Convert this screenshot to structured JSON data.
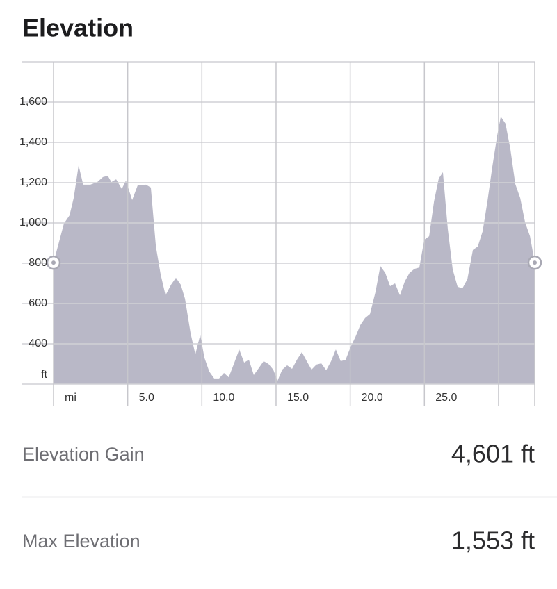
{
  "chart_data": {
    "type": "area",
    "title": "Elevation",
    "xlabel": "mi",
    "ylabel": "ft",
    "color": "#b9b8c7",
    "grid": true,
    "x": [
      0,
      0.7,
      1.08,
      1.36,
      1.69,
      2.0,
      2.48,
      2.95,
      3.33,
      3.66,
      3.9,
      4.22,
      4.6,
      4.88,
      5.3,
      5.67,
      6.23,
      6.56,
      6.9,
      7.22,
      7.55,
      7.92,
      8.25,
      8.58,
      8.86,
      9.24,
      9.56,
      9.89,
      10.17,
      10.5,
      10.83,
      11.16,
      11.49,
      11.81,
      12.14,
      12.52,
      12.85,
      13.17,
      13.5,
      13.83,
      14.16,
      14.49,
      14.81,
      15.1,
      15.42,
      15.75,
      16.08,
      16.41,
      16.74,
      17.07,
      17.39,
      17.72,
      18.05,
      18.38,
      18.71,
      19.03,
      19.36,
      19.69,
      20.02,
      20.35,
      20.68,
      21.0,
      21.33,
      21.71,
      22.03,
      22.36,
      22.69,
      23.02,
      23.35,
      23.68,
      24.0,
      24.33,
      24.66,
      24.99,
      25.32,
      25.65,
      25.97,
      26.25,
      26.58,
      26.91,
      27.24,
      27.57,
      27.9,
      28.27,
      28.6,
      28.93,
      29.25,
      29.58,
      29.91,
      30.15,
      30.47,
      30.8,
      31.13,
      31.46,
      31.79,
      32.12,
      32.44
    ],
    "values": [
      803,
      997,
      1038,
      1124,
      1286,
      1190,
      1190,
      1203,
      1228,
      1234,
      1203,
      1217,
      1169,
      1210,
      1114,
      1186,
      1190,
      1176,
      883,
      745,
      641,
      693,
      728,
      693,
      624,
      452,
      348,
      445,
      331,
      262,
      228,
      228,
      255,
      234,
      297,
      372,
      307,
      321,
      245,
      279,
      314,
      300,
      272,
      217,
      272,
      293,
      276,
      321,
      359,
      314,
      272,
      297,
      303,
      269,
      314,
      372,
      314,
      321,
      383,
      434,
      493,
      528,
      548,
      659,
      786,
      752,
      686,
      700,
      641,
      710,
      752,
      772,
      779,
      917,
      934,
      1107,
      1221,
      1252,
      969,
      769,
      683,
      676,
      721,
      866,
      883,
      959,
      1107,
      1279,
      1434,
      1528,
      1493,
      1366,
      1193,
      1124,
      1003,
      934,
      803
    ],
    "xlim": [
      0,
      32.44
    ],
    "ylim": [
      200,
      1800
    ],
    "xticks": [
      {
        "value": 0,
        "label": null
      },
      {
        "value": 5,
        "label": "5.0"
      },
      {
        "value": 10,
        "label": "10.0"
      },
      {
        "value": 15,
        "label": "15.0"
      },
      {
        "value": 20,
        "label": "20.0"
      },
      {
        "value": 25,
        "label": "25.0"
      },
      {
        "value": 30,
        "label": null
      }
    ],
    "yticks": [
      {
        "value": 400,
        "label": "400"
      },
      {
        "value": 600,
        "label": "600"
      },
      {
        "value": 800,
        "label": "800"
      },
      {
        "value": 1000,
        "label": "1,000"
      },
      {
        "value": 1200,
        "label": "1,200"
      },
      {
        "value": 1400,
        "label": "1,400"
      },
      {
        "value": 1600,
        "label": "1,600"
      }
    ]
  },
  "stats": [
    {
      "label": "Elevation Gain",
      "value": "4,601 ft"
    },
    {
      "label": "Max Elevation",
      "value": "1,553 ft"
    }
  ]
}
